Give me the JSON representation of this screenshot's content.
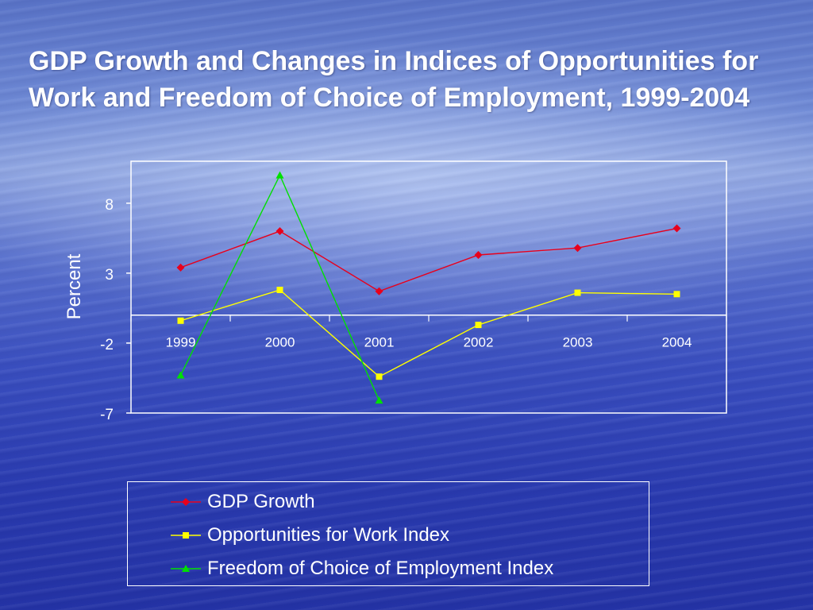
{
  "title": "GDP Growth and Changes in Indices of Opportunities for Work and Freedom of Choice of Employment, 1999-2004",
  "chart_data": {
    "type": "line",
    "title": "GDP Growth and Changes in Indices of Opportunities for Work and Freedom of Choice of Employment, 1999-2004",
    "xlabel": "",
    "ylabel": "Percent",
    "categories": [
      "1999",
      "2000",
      "2001",
      "2002",
      "2003",
      "2004"
    ],
    "ylim": [
      -7,
      11
    ],
    "yticks": [
      8,
      3,
      -2,
      -7
    ],
    "grid": false,
    "legend_position": "bottom",
    "series": [
      {
        "name": "GDP Growth",
        "color": "#e8001c",
        "marker": "diamond",
        "values": [
          3.4,
          6.0,
          1.7,
          4.3,
          4.8,
          6.2
        ]
      },
      {
        "name": "Opportunities for Work Index",
        "color": "#ffff00",
        "marker": "square",
        "values": [
          -0.4,
          1.8,
          -4.4,
          -0.7,
          1.6,
          1.5
        ]
      },
      {
        "name": "Freedom of Choice of Employment Index",
        "color": "#00e000",
        "marker": "triangle",
        "values": [
          -4.3,
          10.0,
          -6.1,
          null,
          null,
          null
        ]
      }
    ]
  }
}
